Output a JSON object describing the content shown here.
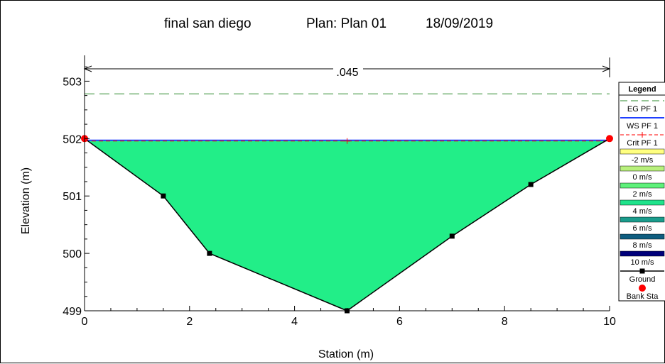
{
  "header": {
    "project": "final san diego",
    "plan": "Plan: Plan 01",
    "date": "18/09/2019"
  },
  "chart_data": {
    "type": "area",
    "xlabel": "Station (m)",
    "ylabel": "Elevation (m)",
    "xlim": [
      0,
      10
    ],
    "ylim": [
      499,
      503.45
    ],
    "x_ticks": [
      0,
      2,
      4,
      6,
      8,
      10
    ],
    "y_ticks": [
      499,
      500,
      501,
      502,
      503
    ],
    "manning_n": ".045",
    "ground": {
      "name": "Ground",
      "x": [
        0,
        1.5,
        2.38,
        5.0,
        7.0,
        8.5,
        10.0
      ],
      "y": [
        502.0,
        501.0,
        500.0,
        499.0,
        500.3,
        501.2,
        502.0
      ]
    },
    "bank_stations": {
      "name": "Bank Sta",
      "x": [
        0,
        10
      ],
      "y": [
        502.0,
        502.0
      ]
    },
    "eg_pf1": {
      "name": "EG PF 1",
      "elevation": 502.78
    },
    "ws_pf1": {
      "name": "WS PF 1",
      "elevation": 501.97
    },
    "crit_pf1": {
      "name": "Crit PF 1",
      "elevation": 501.97,
      "marker_x": 5.0
    },
    "velocity_fill": "4 m/s",
    "legend": {
      "title": "Legend",
      "placement": "right",
      "entries": [
        {
          "label": "EG PF 1",
          "style": "dash",
          "color": "#2e8b2e"
        },
        {
          "label": "WS PF 1",
          "style": "line",
          "color": "#1f3fff"
        },
        {
          "label": "Crit PF 1",
          "style": "dash-cross",
          "color": "#ff0000"
        },
        {
          "label": "-2 m/s",
          "style": "swatch",
          "color": "#ffff80"
        },
        {
          "label": "0 m/s",
          "style": "swatch",
          "color": "#b8f07c"
        },
        {
          "label": "2 m/s",
          "style": "swatch",
          "color": "#5ef17a"
        },
        {
          "label": "4 m/s",
          "style": "swatch",
          "color": "#1fe38b"
        },
        {
          "label": "6 m/s",
          "style": "swatch",
          "color": "#1a9c8c"
        },
        {
          "label": "8 m/s",
          "style": "swatch",
          "color": "#0f5d7f"
        },
        {
          "label": "10 m/s",
          "style": "swatch",
          "color": "#00007a"
        },
        {
          "label": "Ground",
          "style": "line-square",
          "color": "#000000"
        },
        {
          "label": "Bank Sta",
          "style": "dot",
          "color": "#ff0000"
        }
      ]
    },
    "colors": {
      "water": "#22ee88",
      "ground": "#000000",
      "ws": "#1f3fff",
      "eg": "#2e8b2e",
      "crit": "#ff0000",
      "bank": "#ff0000"
    }
  }
}
